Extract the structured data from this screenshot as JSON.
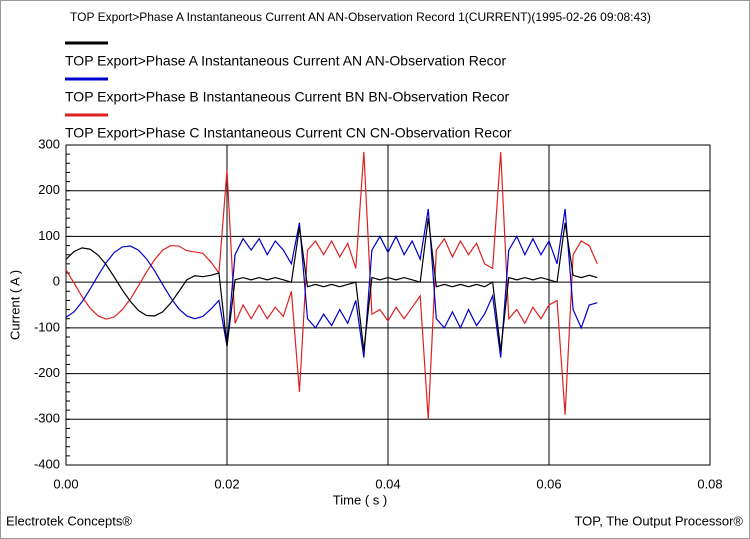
{
  "chart_data": {
    "type": "line",
    "title": "TOP Export>Phase A Instantaneous Current AN AN-Observation Record 1(CURRENT)(1995-02-26 09:08:43)",
    "x_label": "Time ( s )",
    "y_label": "Current ( A )",
    "footer_left": "Electrotek Concepts®",
    "footer_right": "TOP, The Output Processor®",
    "grid": true,
    "xlim": [
      0,
      0.08
    ],
    "xticks": [
      {
        "value": 0,
        "label": "0.00"
      },
      {
        "value": 0.02,
        "label": "0.02"
      },
      {
        "value": 0.04,
        "label": "0.04"
      },
      {
        "value": 0.06,
        "label": "0.06"
      },
      {
        "value": 0.08,
        "label": "0.08"
      }
    ],
    "ylim": [
      -400,
      300
    ],
    "yticks": [
      -400,
      -300,
      -200,
      -100,
      0,
      100,
      200,
      300
    ],
    "x": [
      0,
      0.001,
      0.002,
      0.003,
      0.004,
      0.005,
      0.006,
      0.007,
      0.008,
      0.009,
      0.01,
      0.011,
      0.012,
      0.013,
      0.014,
      0.015,
      0.016,
      0.017,
      0.018,
      0.019,
      0.02,
      0.021,
      0.022,
      0.023,
      0.024,
      0.025,
      0.026,
      0.027,
      0.028,
      0.029,
      0.03,
      0.031,
      0.032,
      0.033,
      0.034,
      0.035,
      0.036,
      0.037,
      0.038,
      0.039,
      0.04,
      0.041,
      0.042,
      0.043,
      0.044,
      0.045,
      0.046,
      0.047,
      0.048,
      0.049,
      0.05,
      0.051,
      0.052,
      0.053,
      0.054,
      0.055,
      0.056,
      0.057,
      0.058,
      0.059,
      0.06,
      0.061,
      0.062,
      0.063,
      0.064,
      0.065,
      0.066
    ],
    "series": [
      {
        "name": "TOP Export>Phase A Instantaneous Current AN AN-Observation Recor",
        "color": "#000000",
        "values": [
          50,
          67,
          75,
          72,
          59,
          38,
          11,
          -17,
          -42,
          -62,
          -73,
          -74,
          -65,
          -46,
          -21,
          5,
          14,
          12,
          15,
          20,
          -140,
          5,
          10,
          5,
          10,
          5,
          10,
          5,
          0,
          120,
          -10,
          -5,
          -10,
          -5,
          -10,
          -5,
          0,
          -150,
          10,
          5,
          10,
          5,
          10,
          5,
          0,
          140,
          -10,
          -5,
          -10,
          -5,
          -10,
          -5,
          -10,
          0,
          -150,
          10,
          5,
          10,
          5,
          10,
          5,
          0,
          130,
          15,
          10,
          15,
          10
        ]
      },
      {
        "name": "TOP Export>Phase B Instantaneous Current BN BN-Observation Recor",
        "color": "#0000cc",
        "values": [
          -77,
          -65,
          -43,
          -15,
          15,
          43,
          65,
          77,
          79,
          70,
          51,
          25,
          -5,
          -34,
          -58,
          -74,
          -80,
          -75,
          -59,
          -40,
          -140,
          60,
          95,
          70,
          95,
          60,
          90,
          70,
          40,
          130,
          -80,
          -100,
          -70,
          -95,
          -60,
          -90,
          -40,
          -165,
          70,
          100,
          65,
          100,
          60,
          90,
          50,
          160,
          -80,
          -100,
          -65,
          -100,
          -60,
          -95,
          -70,
          -30,
          -165,
          70,
          100,
          60,
          95,
          60,
          90,
          40,
          160,
          -60,
          -100,
          -50,
          -45
        ]
      },
      {
        "name": "TOP Export>Phase C Instantaneous Current CN CN-Observation Recor",
        "color": "#dd2222",
        "values": [
          27,
          -2,
          -32,
          -57,
          -74,
          -81,
          -76,
          -60,
          -37,
          -8,
          22,
          49,
          70,
          80,
          79,
          69,
          66,
          63,
          44,
          20,
          245,
          -90,
          -50,
          -80,
          -50,
          -80,
          -55,
          -75,
          -20,
          -240,
          70,
          90,
          60,
          90,
          55,
          85,
          30,
          285,
          -70,
          -60,
          -85,
          -55,
          -80,
          -55,
          -30,
          -300,
          70,
          95,
          55,
          90,
          60,
          85,
          40,
          30,
          285,
          -80,
          -60,
          -90,
          -55,
          -80,
          -50,
          -40,
          -290,
          60,
          90,
          80,
          40
        ]
      }
    ]
  }
}
